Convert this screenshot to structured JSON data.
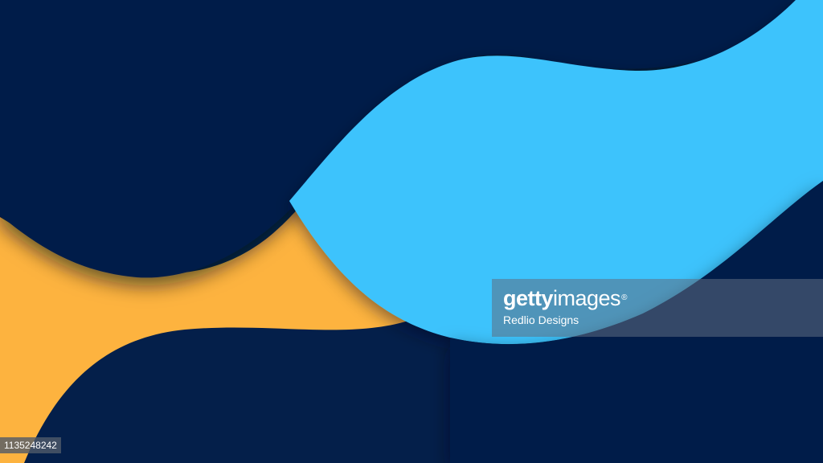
{
  "colors": {
    "background": "#041f4a",
    "yellow_wave": "#fdb33f",
    "blue_wave": "#3cc3fc",
    "shadow": "#000b22"
  },
  "watermark": {
    "brand_part1": "getty",
    "brand_part2": "images",
    "brand_mark": "®",
    "credit": "Redlio Designs"
  },
  "image_id": "1135248242"
}
